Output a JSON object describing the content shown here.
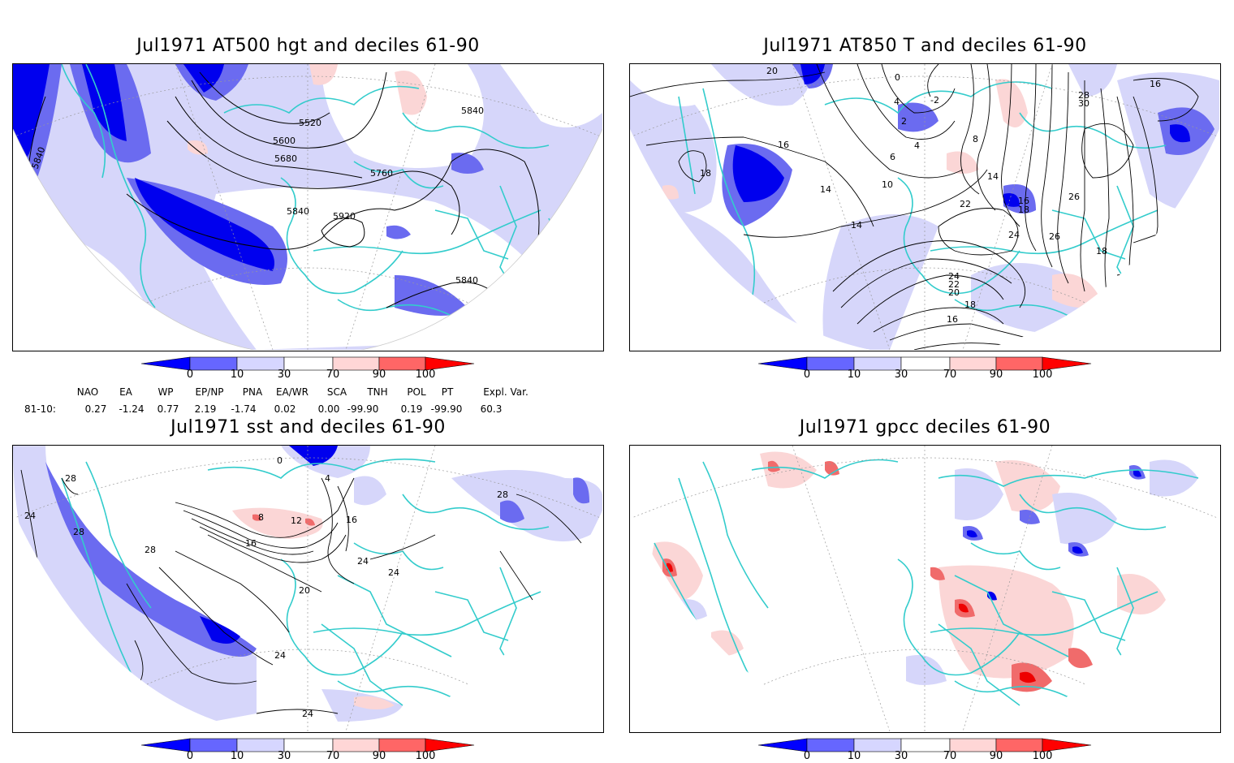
{
  "panels": {
    "p1": {
      "title": "Jul1971 AT500 hgt and deciles 61-90",
      "contours": [
        "5520",
        "5600",
        "5680",
        "5760",
        "5840",
        "5840",
        "5920",
        "5840",
        "5840"
      ]
    },
    "p2": {
      "title": "Jul1971 AT850 T and deciles 61-90",
      "contours": [
        "14",
        "16",
        "18",
        "20",
        "10",
        "6",
        "4",
        "2",
        "0",
        "-2",
        "4",
        "8",
        "14",
        "16",
        "18",
        "22",
        "24",
        "26",
        "28",
        "30",
        "26",
        "24",
        "22",
        "20",
        "18",
        "16",
        "14",
        "16",
        "18"
      ]
    },
    "p3": {
      "title": "Jul1971 sst and deciles 61-90",
      "contours": [
        "28",
        "28",
        "24",
        "28",
        "16",
        "12",
        "8",
        "4",
        "0",
        "20",
        "24",
        "24",
        "24",
        "16",
        "28",
        "24"
      ]
    },
    "p4": {
      "title": "Jul1971 gpcc deciles 61-90"
    }
  },
  "colorbar": {
    "ticks": [
      "0",
      "10",
      "30",
      "70",
      "90",
      "100"
    ],
    "colors": [
      "#0000ff",
      "#6666ff",
      "#d6d6ff",
      "#ffffff",
      "#ffd6d6",
      "#ff6666",
      "#ff0000"
    ]
  },
  "indices": {
    "names": [
      "NAO",
      "EA",
      "WP",
      "EP/NP",
      "PNA",
      "EA/WR",
      "SCA",
      "TNH",
      "POL",
      "PT",
      "Expl. Var."
    ],
    "row_label": "81-10:",
    "values": [
      "0.27",
      "-1.24",
      "0.77",
      "2.19",
      "-1.74",
      "0.02",
      "0.00",
      "-99.90",
      "0.19",
      "-99.90",
      "60.3"
    ]
  },
  "style": {
    "coast": "#33cccc",
    "contour": "#000000",
    "deep_blue": "#0000ee",
    "mid_blue": "#6b6bf0",
    "light_blue": "#d6d6fa",
    "light_red": "#fbd6d6",
    "mid_red": "#f06b6b",
    "deep_red": "#ee0000"
  }
}
